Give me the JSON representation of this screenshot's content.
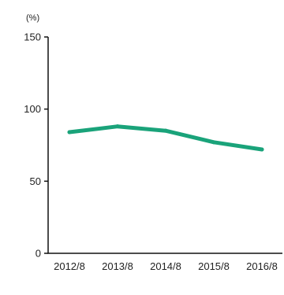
{
  "chart_data": {
    "type": "line",
    "title": "",
    "xlabel": "",
    "ylabel": "",
    "unit_label": "(%)",
    "categories": [
      "2012/8",
      "2013/8",
      "2014/8",
      "2015/8",
      "2016/8"
    ],
    "series": [
      {
        "values": [
          84,
          88,
          85,
          77,
          72
        ],
        "color": "#1aa37a"
      }
    ],
    "ylim": [
      0,
      150
    ],
    "yticks": [
      0,
      50,
      100,
      150
    ],
    "grid": false,
    "axis_color": "#111111"
  }
}
